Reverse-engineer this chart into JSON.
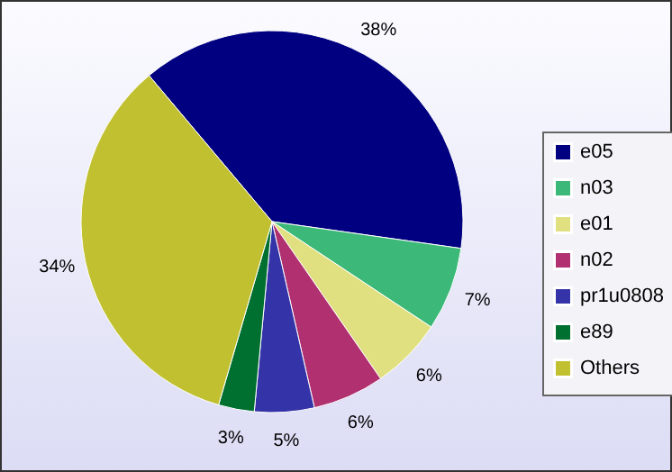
{
  "chart_data": {
    "type": "pie",
    "categories": [
      "e05",
      "n03",
      "e01",
      "n02",
      "pr1u0808",
      "e89",
      "Others"
    ],
    "values": [
      38,
      7,
      6,
      6,
      5,
      3,
      34
    ],
    "colors": [
      "#000080",
      "#3cb878",
      "#e0e080",
      "#b03070",
      "#3434a8",
      "#007030",
      "#c0c030"
    ],
    "value_labels": [
      "38%",
      "7%",
      "6%",
      "6%",
      "5%",
      "3%",
      "34%"
    ],
    "legend": "right"
  }
}
